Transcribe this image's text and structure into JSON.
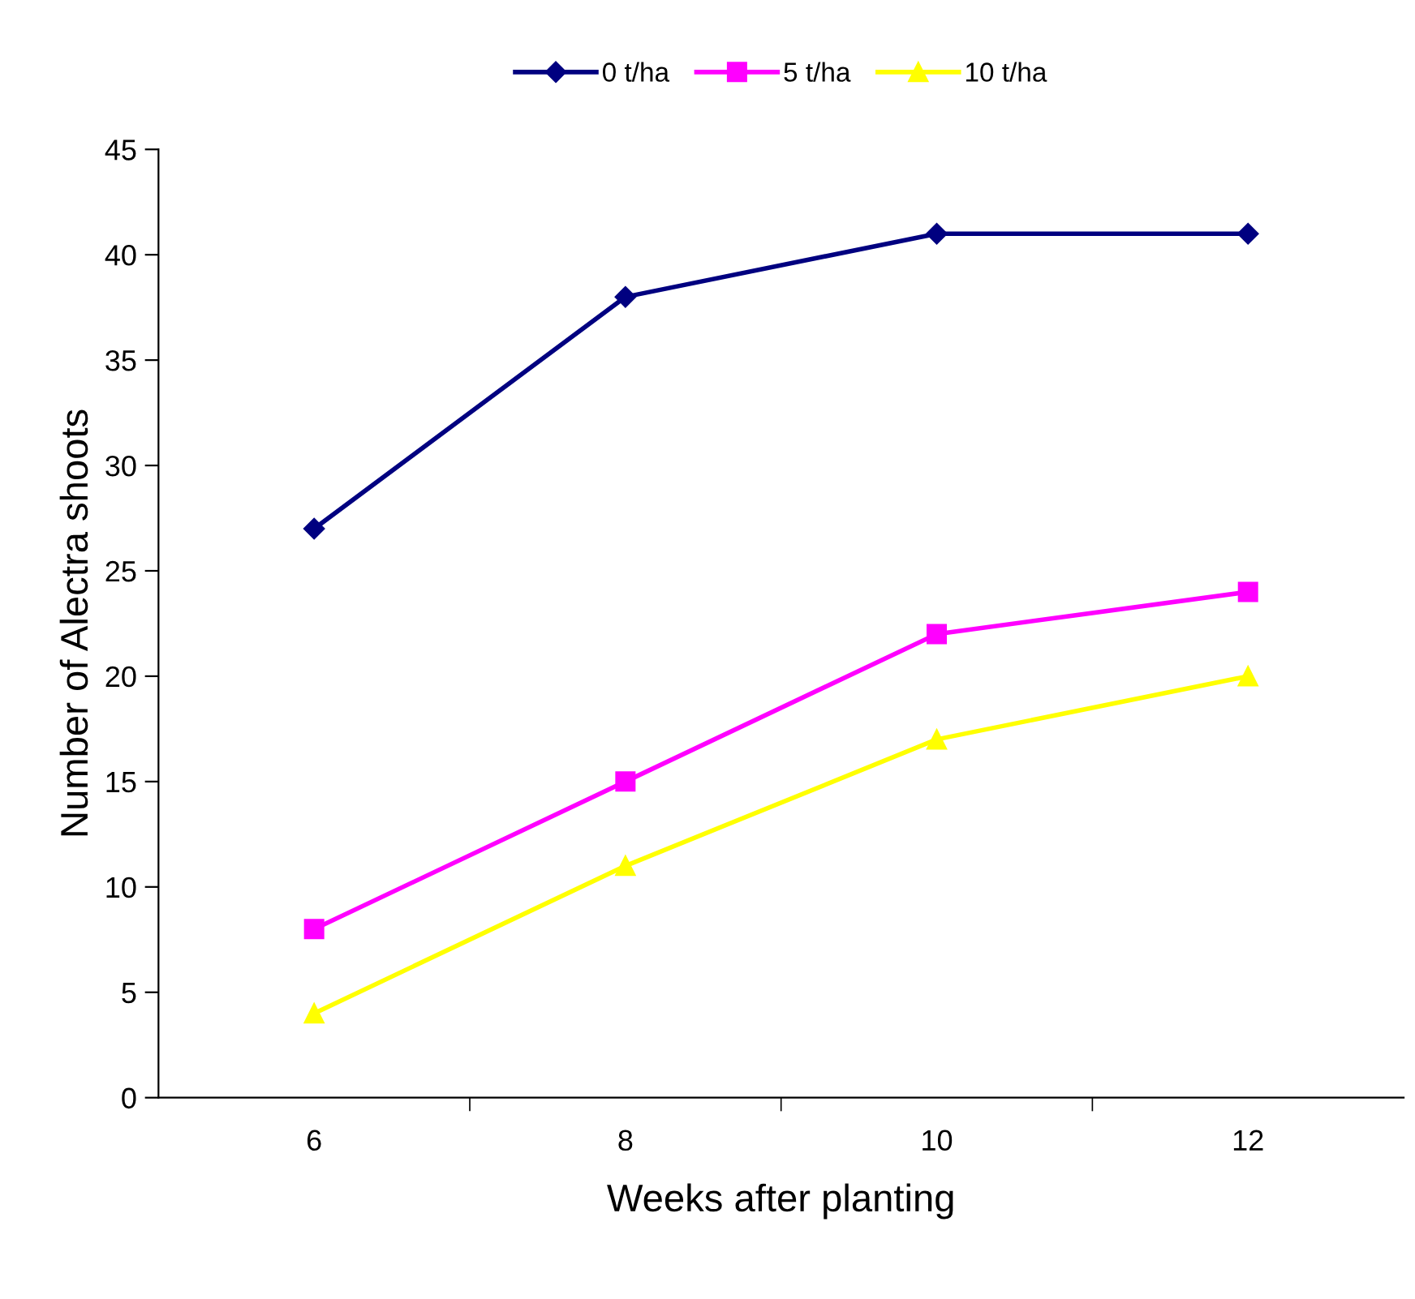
{
  "chart_data": {
    "type": "line",
    "xlabel": "Weeks after planting",
    "ylabel": "Number of Alectra shoots",
    "categories": [
      "6",
      "8",
      "10",
      "12"
    ],
    "series": [
      {
        "name": "0 t/ha",
        "color": "#000080",
        "marker": "diamond",
        "values": [
          27,
          38,
          41,
          41
        ]
      },
      {
        "name": "5 t/ha",
        "color": "#ff00ff",
        "marker": "square",
        "values": [
          8,
          15,
          22,
          24
        ]
      },
      {
        "name": "10 t/ha",
        "color": "#ffff00",
        "marker": "triangle",
        "values": [
          4,
          11,
          17,
          20
        ]
      }
    ],
    "ylim": [
      0,
      45
    ],
    "yticks": [
      0,
      5,
      10,
      15,
      20,
      25,
      30,
      35,
      40,
      45
    ],
    "grid": false,
    "legend": "top",
    "line_style": "solid"
  }
}
